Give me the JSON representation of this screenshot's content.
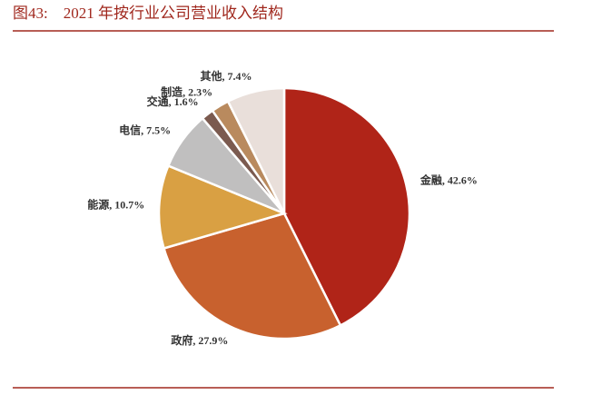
{
  "chart_data": {
    "type": "pie",
    "title": "图43:    2021 年按行业公司营业收入结构",
    "values": [
      42.6,
      27.9,
      10.7,
      7.5,
      1.6,
      2.3,
      7.4
    ],
    "value_labels": [
      "金融, 42.6%",
      "政府, 27.9%",
      "能源, 10.7%",
      "电信, 7.5%",
      "交通, 1.6%",
      "制造, 2.3%",
      "其他, 7.4%"
    ],
    "colors": [
      "#b02418",
      "#c8612e",
      "#d9a043",
      "#c0bfbf",
      "#7b5a4f",
      "#b98a5e",
      "#e9dfda"
    ]
  }
}
